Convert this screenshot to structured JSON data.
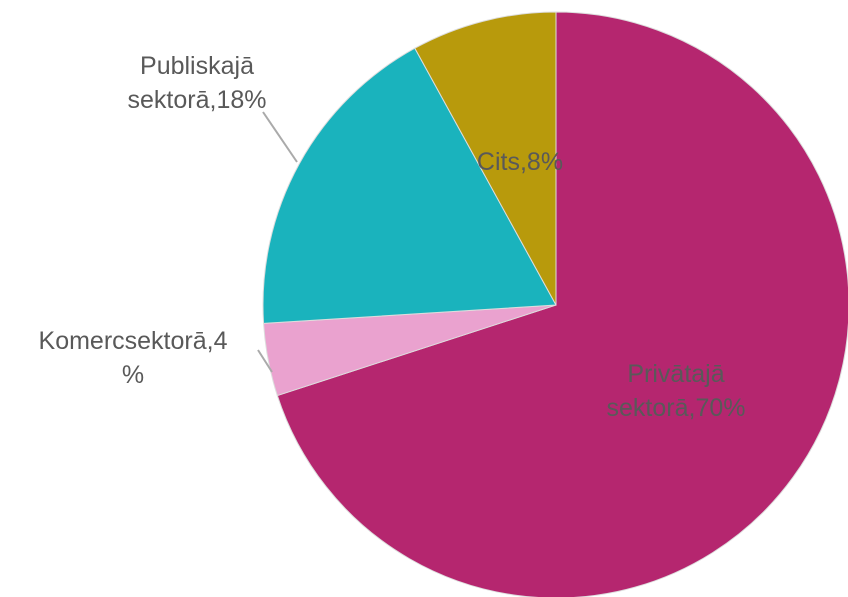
{
  "chart_data": {
    "type": "pie",
    "values": [
      70,
      4,
      18,
      8
    ],
    "value_labels": [
      [
        "Privātajā",
        "sektorā,70%"
      ],
      [
        "Komercsektorā,4",
        "%"
      ],
      [
        "Publiskajā",
        "sektorā,18%"
      ],
      [
        "Cits,8%"
      ]
    ],
    "colors": [
      "#b5266f",
      "#eaa2cf",
      "#1ab3bd",
      "#b89a0c"
    ]
  }
}
